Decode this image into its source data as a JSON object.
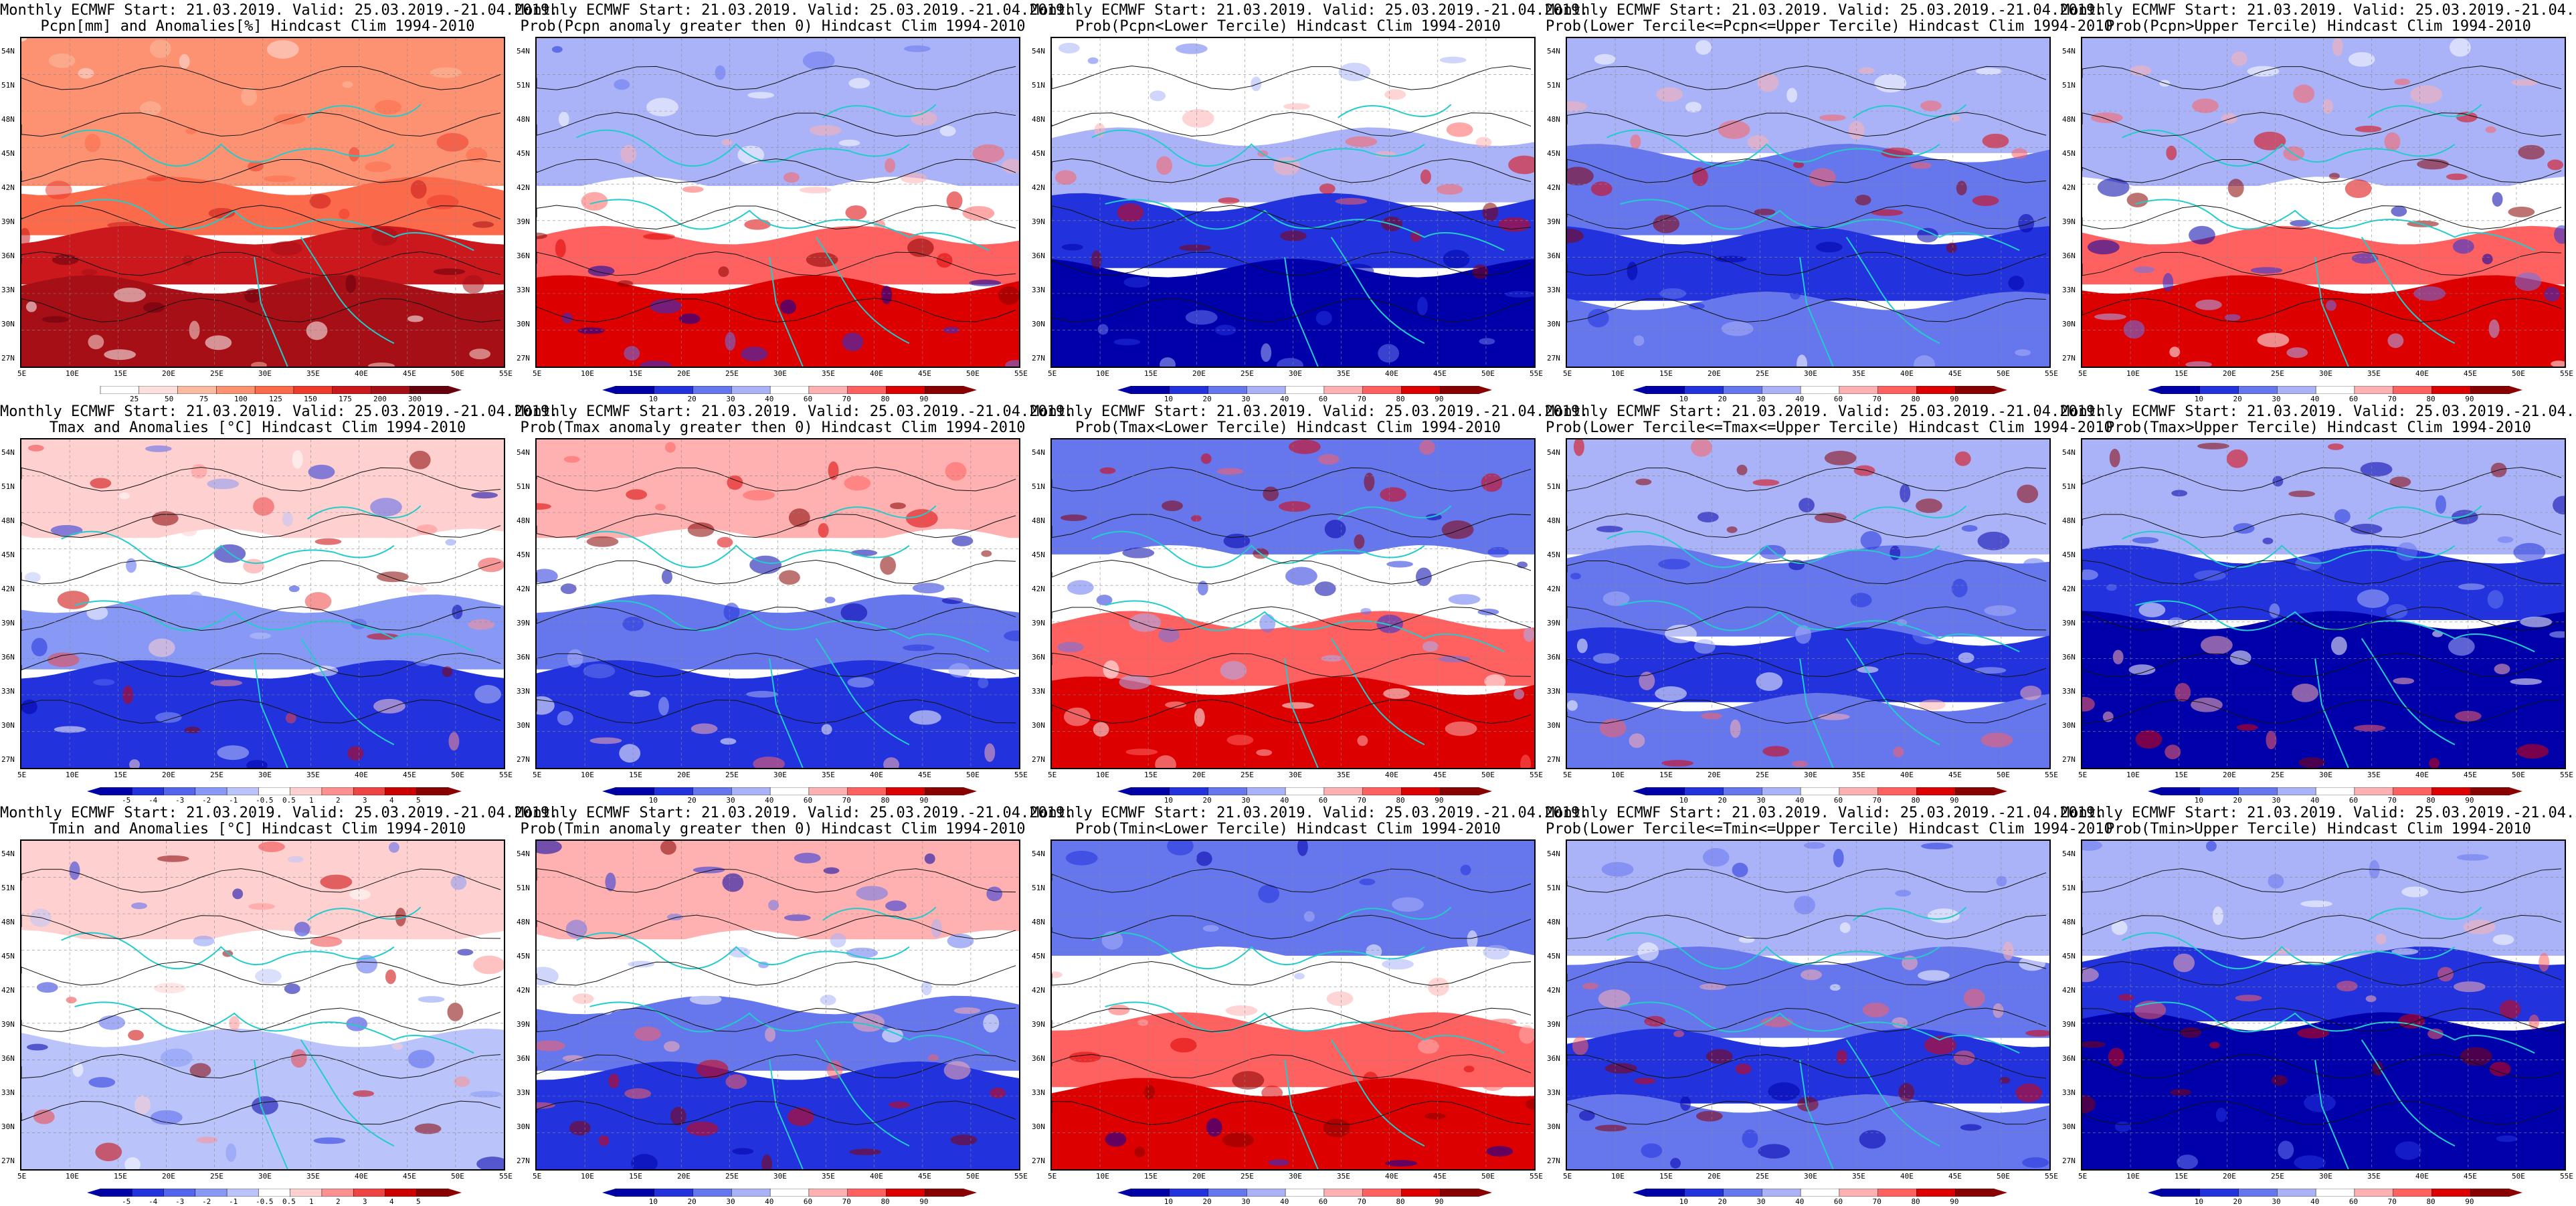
{
  "title_line1": "Monthly ECMWF Start: 21.03.2019. Valid: 25.03.2019.-21.04.2019.",
  "latitude_labels": [
    "54N",
    "51N",
    "48N",
    "45N",
    "42N",
    "39N",
    "36N",
    "33N",
    "30N",
    "27N"
  ],
  "longitude_labels": [
    "5E",
    "10E",
    "15E",
    "20E",
    "25E",
    "30E",
    "35E",
    "40E",
    "45E",
    "50E",
    "55E"
  ],
  "palettes": {
    "precip": [
      "#ffffff",
      "#fde0dd",
      "#fcbba1",
      "#fc9272",
      "#fb6a4a",
      "#ef3b2c",
      "#cb181d",
      "#a50f15",
      "#67000d"
    ],
    "diverging": [
      "#0000aa",
      "#2233dd",
      "#5566ee",
      "#8899f5",
      "#bbc4fa",
      "#ffffff",
      "#ffd0d0",
      "#ff9090",
      "#ee4444",
      "#cc0000",
      "#880000"
    ],
    "prob": [
      "#0000aa",
      "#2233dd",
      "#6677ee",
      "#aab3f8",
      "#ffffff",
      "#ffb0b0",
      "#ff6060",
      "#dd0000",
      "#880000"
    ]
  },
  "colorbar_ticks": {
    "precip": [
      "25",
      "50",
      "75",
      "100",
      "125",
      "150",
      "175",
      "200",
      "300"
    ],
    "temp": [
      "-5",
      "-4",
      "-3",
      "-2",
      "-1",
      "-0.5",
      "0.5",
      "1",
      "2",
      "3",
      "4",
      "5"
    ],
    "prob": [
      "10",
      "20",
      "30",
      "40",
      "60",
      "70",
      "80",
      "90"
    ]
  },
  "panels": [
    {
      "title2": "Pcpn[mm] and Anomalies[%] Hindcast Clim 1994-2010",
      "palette": "precip",
      "ticks": "precip",
      "pattern": "pcpn"
    },
    {
      "title2": "Prob(Pcpn anomaly greater then 0) Hindcast Clim 1994-2010",
      "palette": "prob",
      "ticks": "prob",
      "pattern": "pcpn"
    },
    {
      "title2": "Prob(Pcpn<Lower Tercile) Hindcast Clim 1994-2010",
      "palette": "prob",
      "ticks": "prob",
      "pattern": "pcpn_lower"
    },
    {
      "title2": "Prob(Lower Tercile<=Pcpn<=Upper Tercile) Hindcast Clim 1994-2010",
      "palette": "prob",
      "ticks": "prob",
      "pattern": "middle"
    },
    {
      "title2": "Prob(Pcpn>Upper Tercile) Hindcast Clim 1994-2010",
      "palette": "prob",
      "ticks": "prob",
      "pattern": "pcpn"
    },
    {
      "title2": "Tmax and Anomalies [°C] Hindcast Clim 1994-2010",
      "palette": "diverging",
      "ticks": "temp",
      "pattern": "temp"
    },
    {
      "title2": "Prob(Tmax anomaly greater then 0) Hindcast Clim 1994-2010",
      "palette": "prob",
      "ticks": "prob",
      "pattern": "temp"
    },
    {
      "title2": "Prob(Tmax<Lower Tercile) Hindcast Clim 1994-2010",
      "palette": "prob",
      "ticks": "prob",
      "pattern": "temp_lower"
    },
    {
      "title2": "Prob(Lower Tercile<=Tmax<=Upper Tercile) Hindcast Clim 1994-2010",
      "palette": "prob",
      "ticks": "prob",
      "pattern": "middle"
    },
    {
      "title2": "Prob(Tmax>Upper Tercile) Hindcast Clim 1994-2010",
      "palette": "prob",
      "ticks": "prob",
      "pattern": "temp_upper"
    },
    {
      "title2": "Tmin and Anomalies [°C] Hindcast Clim 1994-2010",
      "palette": "diverging",
      "ticks": "temp",
      "pattern": "temp_light"
    },
    {
      "title2": "Prob(Tmin anomaly greater then 0) Hindcast Clim 1994-2010",
      "palette": "prob",
      "ticks": "prob",
      "pattern": "temp"
    },
    {
      "title2": "Prob(Tmin<Lower Tercile) Hindcast Clim 1994-2010",
      "palette": "prob",
      "ticks": "prob",
      "pattern": "temp_lower"
    },
    {
      "title2": "Prob(Lower Tercile<=Tmin<=Upper Tercile) Hindcast Clim 1994-2010",
      "palette": "prob",
      "ticks": "prob",
      "pattern": "middle"
    },
    {
      "title2": "Prob(Tmin>Upper Tercile) Hindcast Clim 1994-2010",
      "palette": "prob",
      "ticks": "prob",
      "pattern": "temp_upper"
    }
  ]
}
